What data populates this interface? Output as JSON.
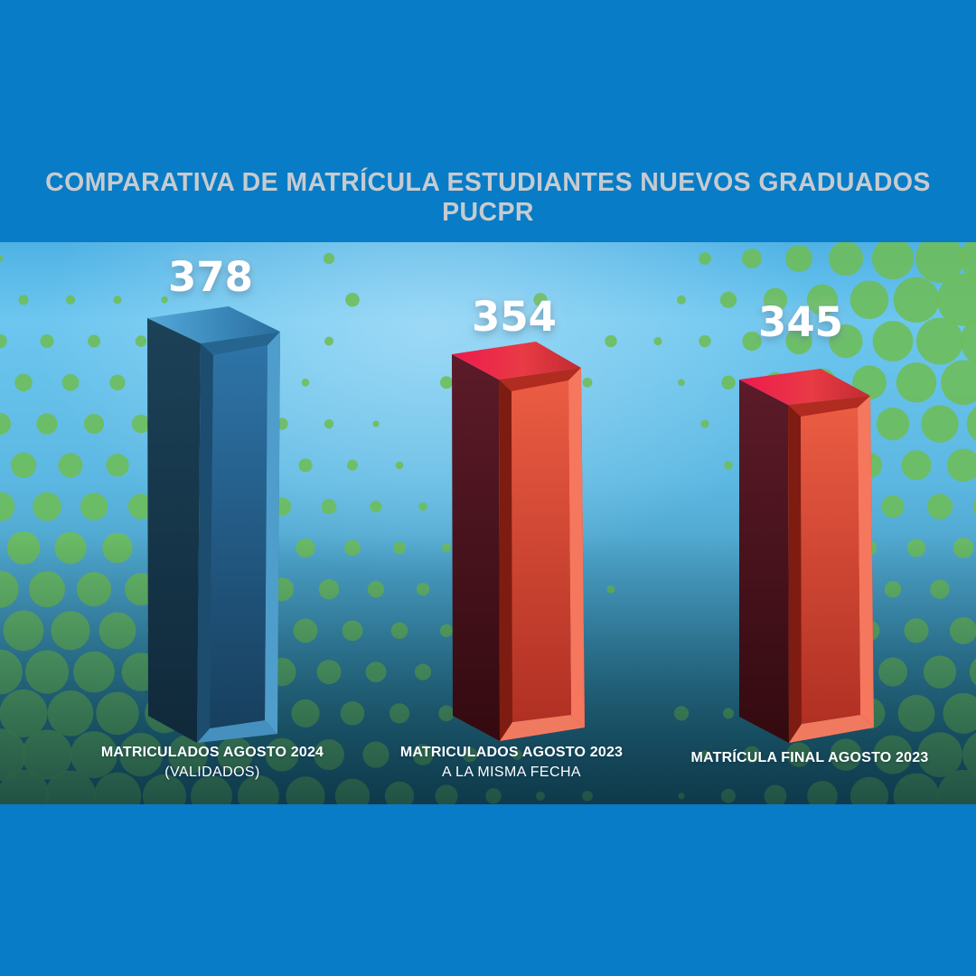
{
  "title": "COMPARATIVA DE MATRÍCULA ESTUDIANTES NUEVOS GRADUADOS PUCPR",
  "chart_data": {
    "type": "bar",
    "title": "COMPARATIVA DE MATRÍCULA ESTUDIANTES NUEVOS GRADUADOS PUCPR",
    "categories": [
      "MATRICULADOS AGOSTO 2024 (VALIDADOS)",
      "MATRICULADOS AGOSTO 2023 A LA MISMA FECHA",
      "MATRÍCULA FINAL AGOSTO 2023"
    ],
    "values": [
      378,
      354,
      345
    ],
    "bar_colors": [
      "#2e74a8",
      "#d84534",
      "#d84534"
    ],
    "xlabel": "",
    "ylabel": "",
    "grid": false,
    "legend": false,
    "value_labels_shown": true,
    "style": "3d-columns on halftone dotted background"
  },
  "bars": [
    {
      "value": "378",
      "label_line1": "MATRICULADOS AGOSTO 2024",
      "label_line2": "(VALIDADOS)"
    },
    {
      "value": "354",
      "label_line1": "MATRICULADOS AGOSTO 2023",
      "label_line2": "A LA MISMA FECHA"
    },
    {
      "value": "345",
      "label_line1": "MATRÍCULA FINAL AGOSTO 2023",
      "label_line2": ""
    }
  ],
  "colors": {
    "frame-blue": "#087cc6",
    "title-text": "#c6cbd0",
    "label-text": "#ffffff",
    "value-text": "#ffffff",
    "sky-top": "#6cc6ef",
    "sky-bottom": "#1f5c72",
    "dot-green": "#6dbd57",
    "bar-blue": "#2e74a8",
    "bar-red": "#d84534"
  }
}
